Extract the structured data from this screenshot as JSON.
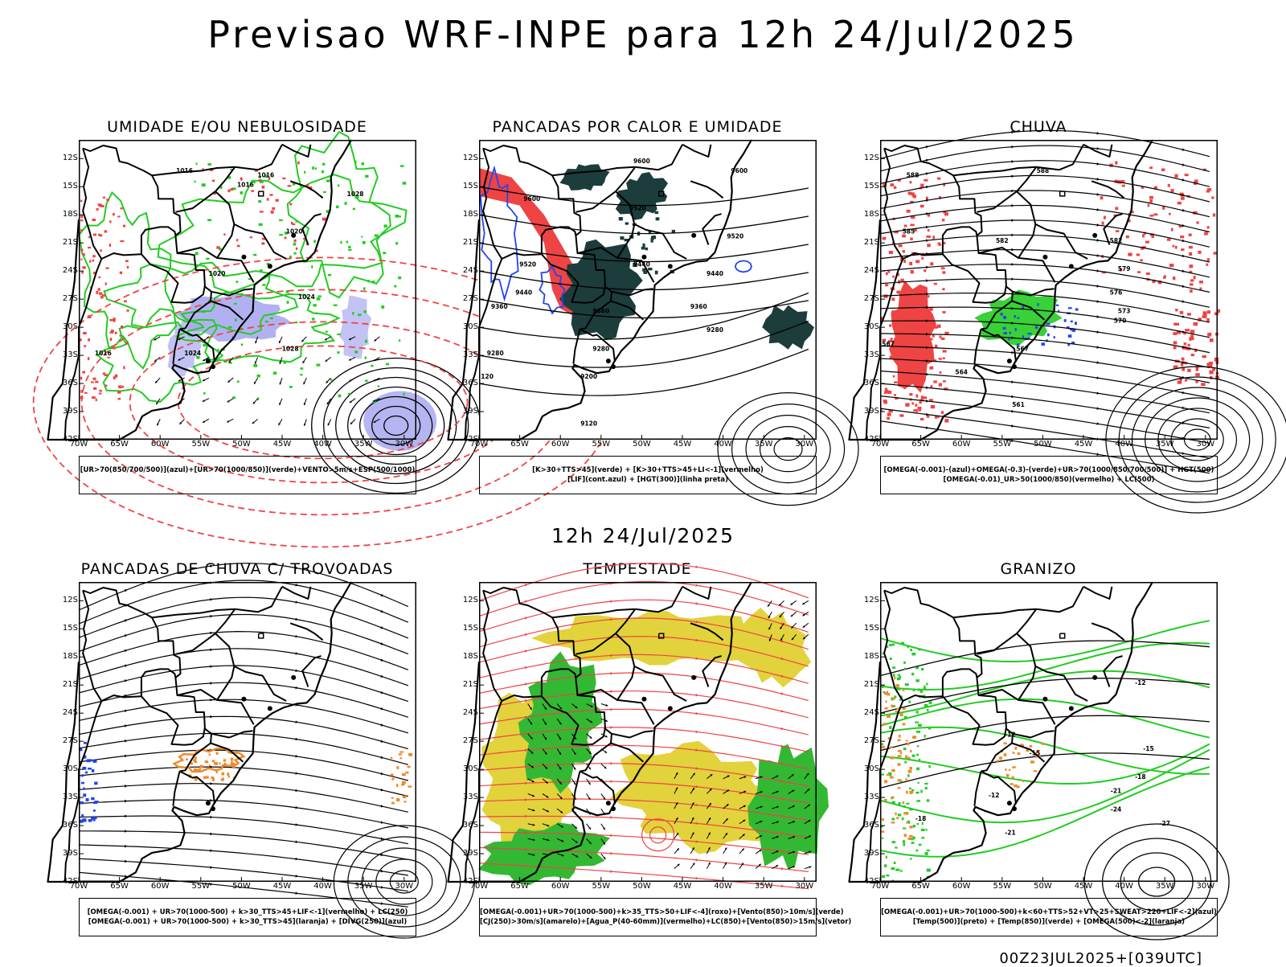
{
  "header": {
    "title": "Previsao WRF-INPE  para 12h 24/Jul/2025",
    "subtitle": "12h 24/Jul/2025",
    "footer": "00Z23JUL2025+[039UTC]"
  },
  "axes": {
    "lat_labels": [
      "12S",
      "15S",
      "18S",
      "21S",
      "24S",
      "27S",
      "30S",
      "33S",
      "36S",
      "39S",
      "42S"
    ],
    "lon_labels": [
      "70W",
      "65W",
      "60W",
      "55W",
      "50W",
      "45W",
      "40W",
      "35W",
      "30W"
    ]
  },
  "colors": {
    "blue_fill": "#a8a8f0",
    "green": "#22cc22",
    "red": "#ee4444",
    "dark_teal": "#1d3c3c",
    "yellow": "#e2d23c",
    "orange": "#ee8a2a",
    "contour": "#000000"
  },
  "panels": [
    {
      "id": "umidade",
      "title": "UMIDADE E/OU NEBULOSIDADE",
      "legend": [
        "[UR>70(850/700/500)](azul)+[UR>70(1000/850)](verde)+VENTO>5m/s+ESP(500/1000)"
      ],
      "contour_labels": [
        {
          "text": "1016",
          "lon": -57,
          "lat": -13.5
        },
        {
          "text": "1016",
          "lon": -49.5,
          "lat": -15
        },
        {
          "text": "1016",
          "lon": -47,
          "lat": -14
        },
        {
          "text": "1020",
          "lon": -43.5,
          "lat": -20
        },
        {
          "text": "1020",
          "lon": -53,
          "lat": -24.5
        },
        {
          "text": "1024",
          "lon": -42,
          "lat": -27
        },
        {
          "text": "1028",
          "lon": -44,
          "lat": -32.5
        },
        {
          "text": "1024",
          "lon": -56,
          "lat": -33
        },
        {
          "text": "1028",
          "lon": -36,
          "lat": -16
        },
        {
          "text": "1016",
          "lon": -67,
          "lat": -33
        }
      ]
    },
    {
      "id": "pancadas-calor",
      "title": "PANCADAS POR CALOR E UMIDADE",
      "legend": [
        "[K>30+TTS>45](verde) + [K>30+TTS>45+LI<-1](vermelho)",
        "[LIF](cont.azul) + [HGT(300)](linha preta)"
      ],
      "contour_labels": [
        {
          "text": "9600",
          "lon": -50,
          "lat": -12.5
        },
        {
          "text": "9600",
          "lon": -38,
          "lat": -13.5
        },
        {
          "text": "9600",
          "lon": -63.5,
          "lat": -16.5
        },
        {
          "text": "9520",
          "lon": -50.5,
          "lat": -17.5
        },
        {
          "text": "9520",
          "lon": -38.5,
          "lat": -20.5
        },
        {
          "text": "9520",
          "lon": -64,
          "lat": -23.5
        },
        {
          "text": "9440",
          "lon": -50,
          "lat": -23.5
        },
        {
          "text": "9440",
          "lon": -41,
          "lat": -24.5
        },
        {
          "text": "9440",
          "lon": -64.5,
          "lat": -26.5
        },
        {
          "text": "9360",
          "lon": -55,
          "lat": -28.5
        },
        {
          "text": "9360",
          "lon": -43,
          "lat": -28
        },
        {
          "text": "9360",
          "lon": -67.5,
          "lat": -28
        },
        {
          "text": "9280",
          "lon": -41,
          "lat": -30.5
        },
        {
          "text": "9280",
          "lon": -55,
          "lat": -32.5
        },
        {
          "text": "9280",
          "lon": -68,
          "lat": -33
        },
        {
          "text": "9200",
          "lon": -56.5,
          "lat": -35.5
        },
        {
          "text": "9120",
          "lon": -56.5,
          "lat": -40.5
        },
        {
          "text": "120",
          "lon": -69,
          "lat": -35.5
        }
      ]
    },
    {
      "id": "chuva",
      "title": "CHUVA",
      "legend": [
        "[OMEGA(-0.001)-(azul)+OMEGA(-0.3)-(verde)+UR>70(1000/850/700/500)] + HGT(500)",
        "[OMEGA(-0.01)_UR>50(1000/850)(vermelho) + LC(500)"
      ],
      "contour_labels": [
        {
          "text": "588",
          "lon": -66,
          "lat": -14
        },
        {
          "text": "588",
          "lon": -50,
          "lat": -13.5
        },
        {
          "text": "585",
          "lon": -66.5,
          "lat": -20
        },
        {
          "text": "582",
          "lon": -55,
          "lat": -21
        },
        {
          "text": "582",
          "lon": -41,
          "lat": -21
        },
        {
          "text": "579",
          "lon": -40,
          "lat": -24
        },
        {
          "text": "576",
          "lon": -41,
          "lat": -26.5
        },
        {
          "text": "573",
          "lon": -40,
          "lat": -28.5
        },
        {
          "text": "570",
          "lon": -40.5,
          "lat": -29.5
        },
        {
          "text": "567",
          "lon": -52.5,
          "lat": -32.5
        },
        {
          "text": "567",
          "lon": -69,
          "lat": -32
        },
        {
          "text": "564",
          "lon": -60,
          "lat": -35
        },
        {
          "text": "561",
          "lon": -53,
          "lat": -38.5
        }
      ]
    },
    {
      "id": "pancadas-trovoadas",
      "title": "PANCADAS DE CHUVA C/ TROVOADAS",
      "legend": [
        "[OMEGA(-0.001) + UR>70(1000-500) + k>30_TTS>45+LIF<-1](vermelho) + LC(250)",
        "[OMEGA(-0.001) + UR>70(1000-500) + k>30_TTS>45](laranja) + [DIVG(250)](azul)"
      ],
      "contour_labels": []
    },
    {
      "id": "tempestade",
      "title": "TEMPESTADE",
      "legend": [
        "[OMEGA(-0.001)+UR>70(1000-500)+k>35_TTS>50+LIF<-4](roxo)+[Vento(850)>10m/s](verde)",
        "[CJ(250)>30m/s](amarelo)+[Agua_P(40-60mm)](vermelho)+LC(850)+[Vento(850)>15m/s](vetor)"
      ],
      "contour_labels": []
    },
    {
      "id": "granizo",
      "title": "GRANIZO",
      "legend": [
        "[OMEGA(-0.001)+UR>70(1000-500)+k<60+TTS>52+VT>25+SWEAT>220+LIF<-2](azul)",
        "[Temp(500)](preto) + [Temp(850)](verde) + [OMEGA(500)<-2](laranja)"
      ],
      "contour_labels": [
        {
          "text": "-12",
          "lon": -38,
          "lat": -21
        },
        {
          "text": "-12",
          "lon": -54,
          "lat": -26.5
        },
        {
          "text": "-15",
          "lon": -51,
          "lat": -28.5
        },
        {
          "text": "-15",
          "lon": -37,
          "lat": -28
        },
        {
          "text": "-12",
          "lon": -56,
          "lat": -33
        },
        {
          "text": "-18",
          "lon": -65,
          "lat": -35.5
        },
        {
          "text": "-18",
          "lon": -38,
          "lat": -31
        },
        {
          "text": "-21",
          "lon": -41,
          "lat": -32.5
        },
        {
          "text": "-24",
          "lon": -41,
          "lat": -34.5
        },
        {
          "text": "-27",
          "lon": -35,
          "lat": -36
        },
        {
          "text": "-21",
          "lon": -54,
          "lat": -37
        }
      ]
    }
  ]
}
